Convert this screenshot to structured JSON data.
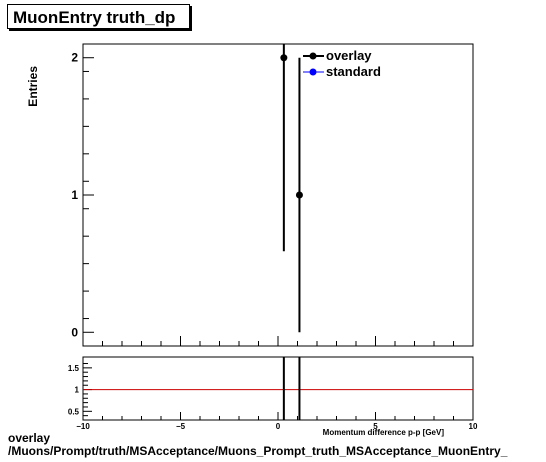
{
  "title": "MuonEntry truth_dp",
  "main_plot": {
    "ylabel": "Entries",
    "legend": [
      {
        "label": "overlay",
        "color": "#000000"
      },
      {
        "label": "standard",
        "color": "#0000ff"
      }
    ]
  },
  "ratio_plot": {
    "xlabel": "Momentum difference p-p     [GeV]"
  },
  "footer": {
    "line1": "overlay",
    "line2": "/Muons/Prompt/truth/MSAcceptance/Muons_Prompt_truth_MSAcceptance_MuonEntry_"
  },
  "chart_data": [
    {
      "type": "scatter",
      "title": "MuonEntry truth_dp",
      "xlabel": "",
      "ylabel": "Entries",
      "xlim": [
        -10,
        10
      ],
      "ylim": [
        -0.1,
        2.1
      ],
      "x_ticks": [],
      "y_ticks": [
        "0",
        "1",
        "2"
      ],
      "legend_position": "top-right",
      "series": [
        {
          "name": "overlay",
          "color": "#000000",
          "points": [
            {
              "x": 0.3,
              "y": 2,
              "err": 1.41
            },
            {
              "x": 1.1,
              "y": 1,
              "err": 1.0
            }
          ]
        },
        {
          "name": "standard",
          "color": "#0000ff",
          "points": []
        }
      ]
    },
    {
      "type": "line",
      "xlabel": "Momentum difference p-p     [GeV]",
      "xlim": [
        -10,
        10
      ],
      "ylim": [
        0.3,
        1.75
      ],
      "x_ticks": [
        "-10",
        "-5",
        "0",
        "5",
        "10"
      ],
      "y_ticks": [
        "0.5",
        "1",
        "1.5"
      ],
      "reference_line": {
        "y": 1,
        "color": "#cc0000"
      },
      "error_bars": [
        {
          "x": 0.3,
          "ylow": 0.3,
          "yhigh": 1.75
        },
        {
          "x": 1.1,
          "ylow": 0.3,
          "yhigh": 1.75
        }
      ]
    }
  ]
}
